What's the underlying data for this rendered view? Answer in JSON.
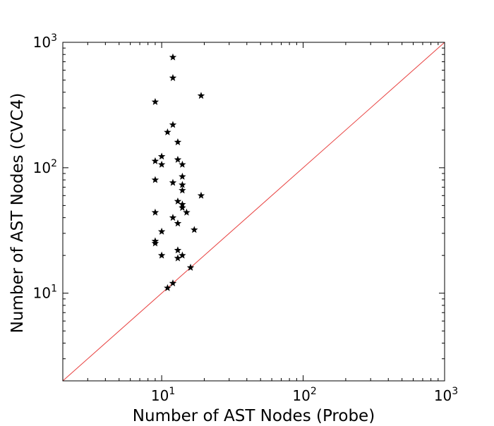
{
  "chart_data": {
    "type": "scatter",
    "title": "",
    "xlabel": "Number of AST Nodes (Probe)",
    "ylabel": "Number of AST Nodes (CVC4)",
    "x_scale": "log",
    "y_scale": "log",
    "xlim": [
      2,
      1000
    ],
    "ylim": [
      2,
      1000
    ],
    "x_ticks": [
      {
        "value": 10,
        "base": "10",
        "exp": "1"
      },
      {
        "value": 100,
        "base": "10",
        "exp": "2"
      },
      {
        "value": 1000,
        "base": "10",
        "exp": "3"
      }
    ],
    "y_ticks": [
      {
        "value": 10,
        "base": "10",
        "exp": "1"
      },
      {
        "value": 100,
        "base": "10",
        "exp": "2"
      },
      {
        "value": 1000,
        "base": "10",
        "exp": "3"
      }
    ],
    "grid": false,
    "legend": "none",
    "marker": "star",
    "marker_color": "#000000",
    "reference_line": {
      "type": "y=x",
      "color": "#e8403f"
    },
    "points": [
      {
        "x": 12,
        "y": 760
      },
      {
        "x": 12,
        "y": 520
      },
      {
        "x": 19,
        "y": 375
      },
      {
        "x": 9,
        "y": 335
      },
      {
        "x": 12,
        "y": 220
      },
      {
        "x": 11,
        "y": 192
      },
      {
        "x": 13,
        "y": 160
      },
      {
        "x": 10,
        "y": 123
      },
      {
        "x": 9,
        "y": 113
      },
      {
        "x": 13,
        "y": 116
      },
      {
        "x": 10,
        "y": 106
      },
      {
        "x": 14,
        "y": 106
      },
      {
        "x": 14,
        "y": 85
      },
      {
        "x": 9,
        "y": 80
      },
      {
        "x": 12,
        "y": 76
      },
      {
        "x": 14,
        "y": 73
      },
      {
        "x": 14,
        "y": 66
      },
      {
        "x": 19,
        "y": 60
      },
      {
        "x": 13,
        "y": 54
      },
      {
        "x": 14,
        "y": 51
      },
      {
        "x": 14,
        "y": 48
      },
      {
        "x": 15,
        "y": 44
      },
      {
        "x": 9,
        "y": 44
      },
      {
        "x": 12,
        "y": 40
      },
      {
        "x": 13,
        "y": 36
      },
      {
        "x": 17,
        "y": 32
      },
      {
        "x": 10,
        "y": 31
      },
      {
        "x": 9,
        "y": 26
      },
      {
        "x": 9,
        "y": 25
      },
      {
        "x": 13,
        "y": 22
      },
      {
        "x": 10,
        "y": 20
      },
      {
        "x": 14,
        "y": 20
      },
      {
        "x": 13,
        "y": 19
      },
      {
        "x": 16,
        "y": 16
      },
      {
        "x": 12,
        "y": 12
      },
      {
        "x": 11,
        "y": 11
      }
    ]
  }
}
